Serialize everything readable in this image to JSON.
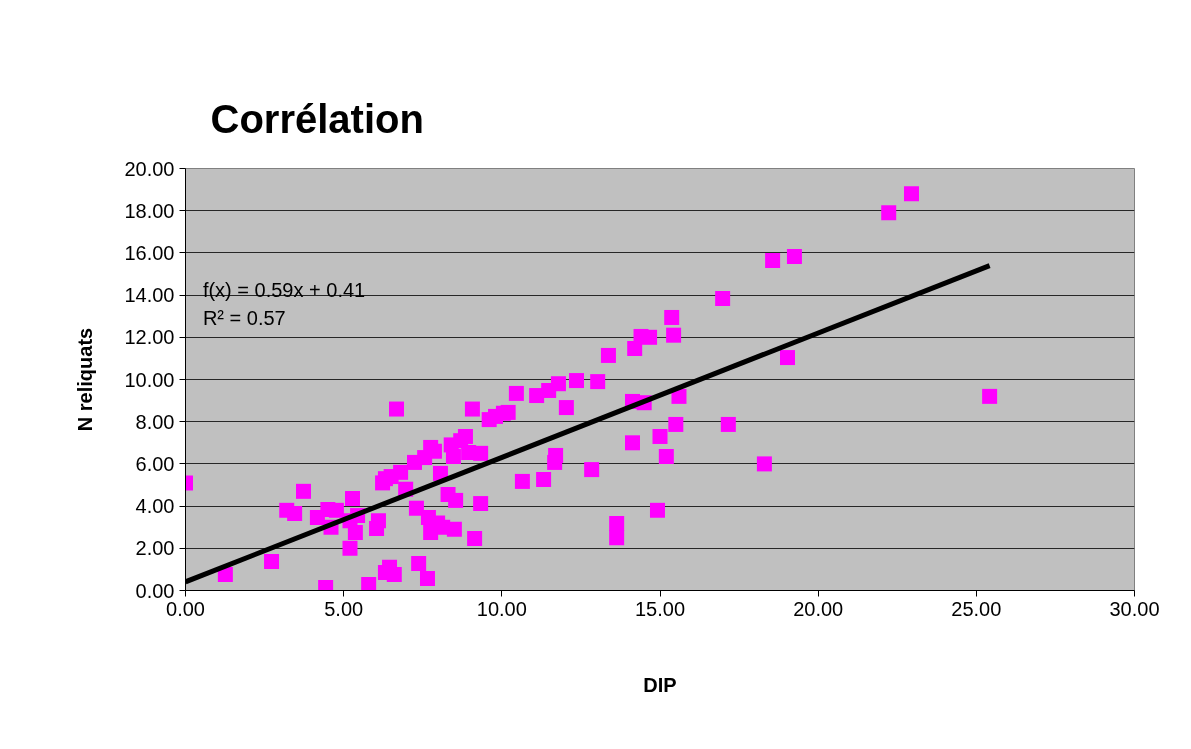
{
  "chart_data": {
    "type": "scatter",
    "title": "Corrélation",
    "xlabel": "DIP",
    "ylabel": "N reliquats",
    "annotations": [
      "f(x) = 0.59x + 0.41",
      "R² = 0.57"
    ],
    "xlim": [
      0,
      30
    ],
    "ylim": [
      0,
      20
    ],
    "xticks": [
      {
        "value": 0,
        "label": "0.00"
      },
      {
        "value": 5,
        "label": "5.00"
      },
      {
        "value": 10,
        "label": "10.00"
      },
      {
        "value": 15,
        "label": "15.00"
      },
      {
        "value": 20,
        "label": "20.00"
      },
      {
        "value": 25,
        "label": "25.00"
      },
      {
        "value": 30,
        "label": "30.00"
      }
    ],
    "yticks": [
      {
        "value": 0,
        "label": "0.00"
      },
      {
        "value": 2,
        "label": "2.00"
      },
      {
        "value": 4,
        "label": "4.00"
      },
      {
        "value": 6,
        "label": "6.00"
      },
      {
        "value": 8,
        "label": "8.00"
      },
      {
        "value": 10,
        "label": "10.00"
      },
      {
        "value": 12,
        "label": "12.00"
      },
      {
        "value": 14,
        "label": "14.00"
      },
      {
        "value": 16,
        "label": "16.00"
      },
      {
        "value": 18,
        "label": "18.00"
      },
      {
        "value": 20,
        "label": "20.00"
      }
    ],
    "grid": "y",
    "marker": "square",
    "series": [
      {
        "color": "#ff00ff",
        "x": [
          0.0,
          1.26,
          2.72,
          3.2,
          3.45,
          3.73,
          4.17,
          4.43,
          4.5,
          4.6,
          4.77,
          5.2,
          5.2,
          5.28,
          5.37,
          5.44,
          5.79,
          6.04,
          6.1,
          6.23,
          6.32,
          6.32,
          6.45,
          6.5,
          6.6,
          6.67,
          6.8,
          6.96,
          7.24,
          7.3,
          7.37,
          7.56,
          7.65,
          7.68,
          7.75,
          7.75,
          7.87,
          7.97,
          8.06,
          8.13,
          8.3,
          8.4,
          8.47,
          8.5,
          8.54,
          8.7,
          8.85,
          8.95,
          9.07,
          9.14,
          9.33,
          9.33,
          9.6,
          9.8,
          10.05,
          10.2,
          10.46,
          10.65,
          11.1,
          11.32,
          11.48,
          11.67,
          11.7,
          11.79,
          12.04,
          12.36,
          12.84,
          13.03,
          13.37,
          13.63,
          13.63,
          14.13,
          14.13,
          14.2,
          14.4,
          14.5,
          14.67,
          14.92,
          15.0,
          15.2,
          15.37,
          15.43,
          15.5,
          15.6,
          16.98,
          17.16,
          18.3,
          18.56,
          19.03,
          19.25,
          22.23,
          22.95,
          25.42
        ],
        "values": [
          5.1,
          0.76,
          1.37,
          3.8,
          3.65,
          4.7,
          3.46,
          0.14,
          3.84,
          3.0,
          3.8,
          2.0,
          3.3,
          4.36,
          2.75,
          3.55,
          0.28,
          2.94,
          3.3,
          5.1,
          5.3,
          0.85,
          1.1,
          5.4,
          0.76,
          8.6,
          5.6,
          4.8,
          6.07,
          3.9,
          1.28,
          6.3,
          0.57,
          3.46,
          2.75,
          6.78,
          6.6,
          3.2,
          5.55,
          3.0,
          4.55,
          6.9,
          6.35,
          2.9,
          4.27,
          7.1,
          7.3,
          6.54,
          8.6,
          2.46,
          6.5,
          4.12,
          8.1,
          8.25,
          8.4,
          8.44,
          9.34,
          5.17,
          9.24,
          5.26,
          9.48,
          6.07,
          6.4,
          9.8,
          8.67,
          9.95,
          5.73,
          9.9,
          11.14,
          3.18,
          2.5,
          8.96,
          7.0,
          11.47,
          12.04,
          8.9,
          12.0,
          3.8,
          7.3,
          6.35,
          12.94,
          12.1,
          7.87,
          9.2,
          13.84,
          7.87,
          6.0,
          15.64,
          11.04,
          15.83,
          17.9,
          18.8,
          9.2
        ]
      },
      {
        "type": "line",
        "marker": "none",
        "color": "#000000",
        "x": [
          0,
          25.42
        ],
        "values": [
          0.41,
          15.4
        ]
      }
    ]
  }
}
